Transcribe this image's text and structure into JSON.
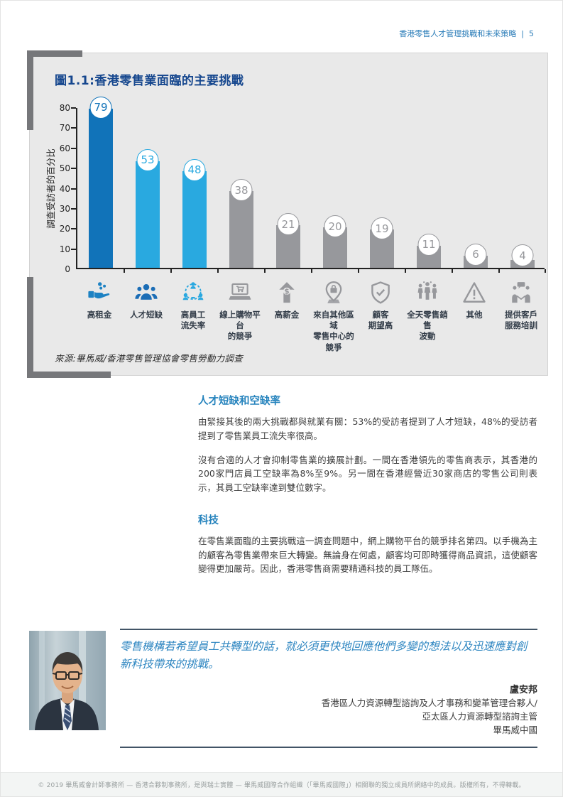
{
  "header": {
    "title": "香港零售人才管理挑戰和未來策略",
    "separator": "|",
    "page_number": "5"
  },
  "chart": {
    "title": "圖1.1:香港零售業面臨的主要挑戰",
    "source": "來源:畢馬威/香港零售管理協會零售勞動力調查"
  },
  "chart_data": {
    "type": "bar",
    "title": "圖1.1:香港零售業面臨的主要挑戰",
    "ylabel": "調查受訪者的百分比",
    "ylim": [
      0,
      80
    ],
    "ytick_step": 10,
    "grid": false,
    "legend": false,
    "categories": [
      [
        "高租金"
      ],
      [
        "人才短缺"
      ],
      [
        "高員工",
        "流失率"
      ],
      [
        "線上購物平台",
        "的競爭"
      ],
      [
        "高薪金"
      ],
      [
        "來自其他區域",
        "零售中心的",
        "競爭"
      ],
      [
        "顧客",
        "期望高"
      ],
      [
        "全天零售銷售",
        "波動"
      ],
      [
        "其他"
      ],
      [
        "提供客戶",
        "服務培訓"
      ]
    ],
    "values": [
      79,
      53,
      48,
      38,
      21,
      20,
      19,
      11,
      6,
      4
    ],
    "bar_colors": [
      "#1173b9",
      "#29a9e0",
      "#29a9e0",
      "#97989c",
      "#97989c",
      "#97989c",
      "#97989c",
      "#97989c",
      "#97989c",
      "#97989c"
    ],
    "icon_colors": [
      "#1d82c3",
      "#1b6db6",
      "#2aa8e0",
      "#97989c",
      "#97989c",
      "#97989c",
      "#97989c",
      "#97989c",
      "#97989c",
      "#97989c"
    ],
    "icons": [
      "hand-coins-icon",
      "people-group-icon",
      "people-network-icon",
      "laptop-cart-icon",
      "salary-up-icon",
      "location-pin-icon",
      "shield-check-icon",
      "people-row-icon",
      "warning-triangle-icon",
      "customer-service-icon"
    ]
  },
  "sections": [
    {
      "heading": "人才短缺和空缺率",
      "paragraphs": [
        "由緊接其後的兩大挑戰都與就業有關：53%的受訪者提到了人才短缺，48%的受訪者提到了零售業員工流失率很高。",
        "沒有合適的人才會抑制零售業的擴展計劃。一間在香港領先的零售商表示，其香港的200家門店員工空缺率為8%至9%。另一間在香港經營近30家商店的零售公司則表示，其員工空缺率達到雙位數字。"
      ]
    },
    {
      "heading": "科技",
      "paragraphs": [
        "在零售業面臨的主要挑戰這一調查問題中，網上購物平台的競爭排名第四。以手機為主的顧客為零售業帶來巨大轉變。無論身在何處，顧客均可即時獲得商品資訊，這使顧客變得更加嚴苛。因此，香港零售商需要精通科技的員工隊伍。"
      ]
    }
  ],
  "quote": {
    "text": "零售機構若希望員工共轉型的話，就必須更快地回應他們多變的想法以及迅速應對創新科技帶來的挑戰。",
    "name": "盧安邦",
    "titles": [
      "香港區人力資源轉型諮詢及人才事務和變革管理合夥人/",
      "亞太區人力資源轉型諮詢主管",
      "畢馬威中國"
    ]
  },
  "footer": {
    "copyright": "© 2019 畢馬威會計師事務所 — 香港合夥制事務所，是與瑞士實體 — 畢馬威國際合作組織（「畢馬威國際」）相關聯的獨立成員所網絡中的成員。版權所有，不得轉載。"
  },
  "colors": {
    "header_blue": "#2a7cb8",
    "chart_title_navy": "#16478e",
    "heading_blue": "#2583bd",
    "quote_blue": "#2e86c1",
    "bar_dark_blue": "#1173b9",
    "bar_light_blue": "#29a9e0",
    "bar_gray": "#97989c",
    "panel_gray": "#e9e9e9",
    "bracket_gray": "#76777a"
  }
}
